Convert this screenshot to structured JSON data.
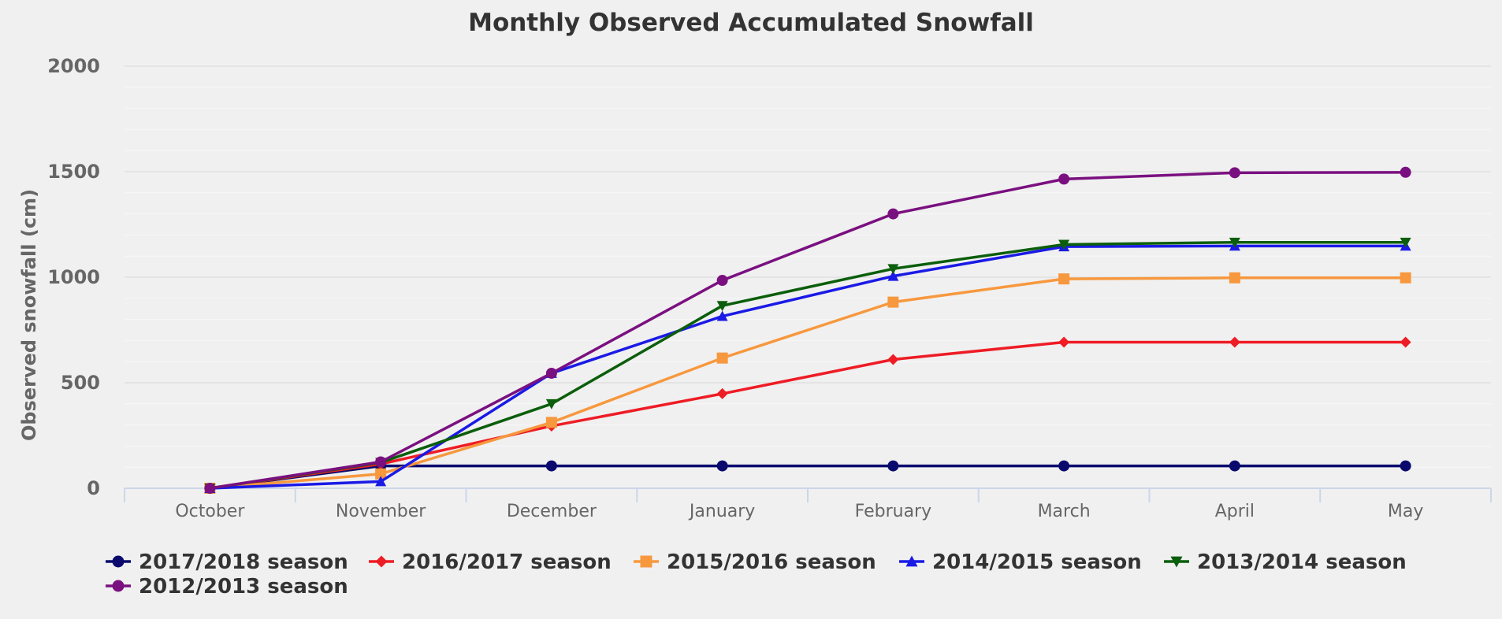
{
  "chart_data": {
    "type": "line",
    "title": "Monthly Observed Accumulated Snowfall",
    "xlabel": "",
    "ylabel": "Observed snowfall (cm)",
    "categories": [
      "October",
      "November",
      "December",
      "January",
      "February",
      "March",
      "April",
      "May"
    ],
    "ylim": [
      0,
      2000
    ],
    "yticks": [
      0,
      500,
      1000,
      1500,
      2000
    ],
    "grid": true,
    "legend": "bottom-left",
    "series": [
      {
        "name": "2017/2018 season",
        "color": "#0a0a6e",
        "marker": "circle",
        "values": [
          0,
          106,
          106,
          106,
          106,
          106,
          106,
          106
        ]
      },
      {
        "name": "2016/2017 season",
        "color": "#ee1c25",
        "marker": "diamond",
        "values": [
          0,
          115,
          295,
          448,
          610,
          692,
          692,
          692
        ]
      },
      {
        "name": "2015/2016 season",
        "color": "#f7983e",
        "marker": "square",
        "values": [
          0,
          68,
          312,
          617,
          882,
          992,
          997,
          997
        ]
      },
      {
        "name": "2014/2015 season",
        "color": "#1a1ae6",
        "marker": "triangle",
        "values": [
          0,
          32,
          545,
          815,
          1005,
          1145,
          1148,
          1148
        ]
      },
      {
        "name": "2013/2014 season",
        "color": "#0b5e0b",
        "marker": "triangle-down",
        "values": [
          0,
          122,
          400,
          865,
          1040,
          1155,
          1165,
          1165
        ]
      },
      {
        "name": "2012/2013 season",
        "color": "#7a1080",
        "marker": "circle",
        "values": [
          0,
          125,
          545,
          985,
          1300,
          1465,
          1495,
          1497
        ]
      }
    ]
  }
}
